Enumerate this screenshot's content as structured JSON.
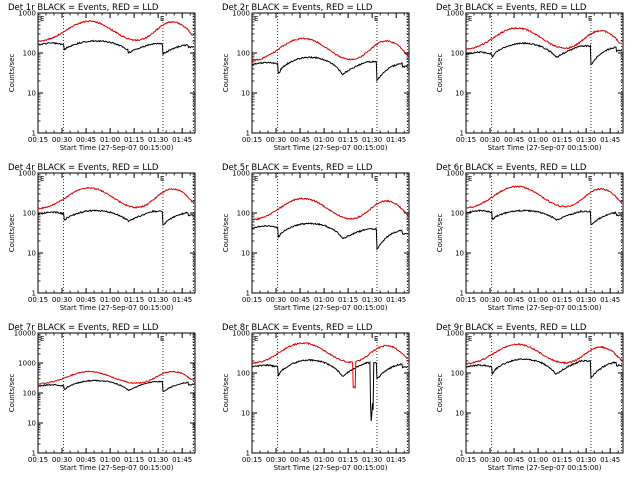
{
  "chart_data": {
    "type": "line",
    "layout": "3x3 grid",
    "common": {
      "xlabel": "Start Time (27-Sep-07 00:15:00)",
      "ylabel": "Counts/sec",
      "xtick_labels": [
        "00:15",
        "00:30",
        "00:45",
        "01:00",
        "01:15",
        "01:30",
        "01:45"
      ],
      "xtick_minutes": [
        15,
        30,
        45,
        60,
        75,
        90,
        105
      ],
      "xlim_minutes": [
        15,
        113
      ],
      "yscale": "log",
      "ylim": [
        1,
        1000
      ],
      "ytick_labels": [
        "1",
        "10",
        "100",
        "1000"
      ],
      "ytick_values": [
        1,
        10,
        100,
        1000
      ],
      "vertical_dotted_lines_minutes": [
        31,
        93,
        112
      ],
      "top_marker_label": "E",
      "series_colors": {
        "events": "#000000",
        "lld": "#e00000"
      }
    },
    "panels": [
      {
        "title": "Det 1r BLACK = Events, RED = LLD",
        "ylim": [
          1,
          1000
        ],
        "events": {
          "base": 170,
          "mins": [
            120,
            100,
            95
          ],
          "maxs": [
            200,
            170
          ]
        },
        "lld": {
          "base": 190,
          "peaks": [
            620,
            600
          ]
        }
      },
      {
        "title": "Det 2r BLACK = Events, RED = LLD",
        "ylim": [
          1,
          1000
        ],
        "events": {
          "base": 55,
          "mins": [
            30,
            28,
            20
          ],
          "maxs": [
            78,
            60
          ]
        },
        "lld": {
          "base": 62,
          "peaks": [
            230,
            200
          ]
        }
      },
      {
        "title": "Det 3r BLACK = Events, RED = LLD",
        "ylim": [
          1,
          1000
        ],
        "events": {
          "base": 100,
          "mins": [
            80,
            75,
            50
          ],
          "maxs": [
            175,
            150
          ]
        },
        "lld": {
          "base": 120,
          "peaks": [
            420,
            360
          ]
        }
      },
      {
        "title": "Det 4r BLACK = Events, RED = LLD",
        "ylim": [
          1,
          1000
        ],
        "events": {
          "base": 100,
          "mins": [
            65,
            60,
            50
          ],
          "maxs": [
            115,
            110
          ]
        },
        "lld": {
          "base": 125,
          "peaks": [
            420,
            400
          ]
        }
      },
      {
        "title": "Det 5r BLACK = Events, RED = LLD",
        "ylim": [
          1,
          1000
        ],
        "events": {
          "base": 45,
          "mins": [
            25,
            22,
            12
          ],
          "maxs": [
            55,
            40
          ]
        },
        "lld": {
          "base": 65,
          "peaks": [
            230,
            200
          ]
        }
      },
      {
        "title": "Det 6r BLACK = Events, RED = LLD",
        "ylim": [
          1,
          1000
        ],
        "events": {
          "base": 110,
          "mins": [
            70,
            65,
            50
          ],
          "maxs": [
            115,
            110
          ]
        },
        "lld": {
          "base": 130,
          "peaks": [
            460,
            400
          ]
        }
      },
      {
        "title": "Det 7r BLACK = Events, RED = LLD",
        "ylim": [
          1,
          10000
        ],
        "events": {
          "base": 180,
          "mins": [
            130,
            120,
            110
          ],
          "maxs": [
            260,
            240
          ]
        },
        "lld": {
          "base": 200,
          "peaks": [
            520,
            520
          ]
        }
      },
      {
        "title": "Det 8r BLACK = Events, RED = LLD",
        "ylim": [
          1,
          1000
        ],
        "events": {
          "base": 150,
          "mins": [
            85,
            80,
            70
          ],
          "maxs": [
            210,
            180
          ],
          "dropout_min": 4
        },
        "lld": {
          "base": 170,
          "peaks": [
            560,
            480
          ],
          "dropout_min": 40
        }
      },
      {
        "title": "Det 9r BLACK = Events, RED = LLD",
        "ylim": [
          1,
          1000
        ],
        "events": {
          "base": 150,
          "mins": [
            95,
            90,
            75
          ],
          "maxs": [
            220,
            200
          ]
        },
        "lld": {
          "base": 165,
          "peaks": [
            520,
            440
          ]
        }
      }
    ]
  }
}
